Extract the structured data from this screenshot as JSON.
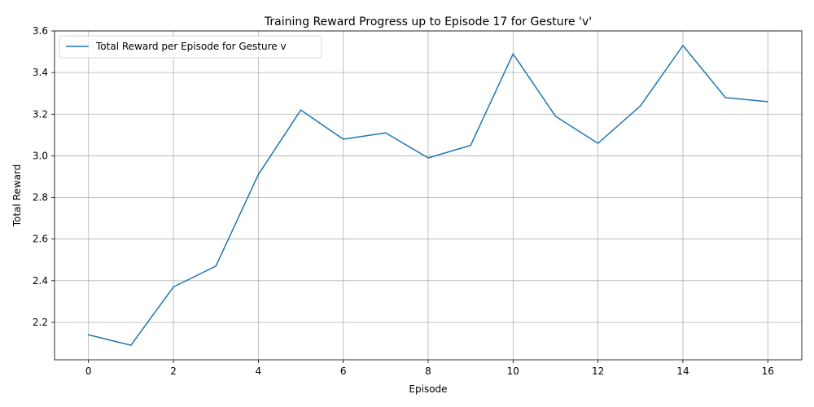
{
  "chart_data": {
    "type": "line",
    "title": "Training Reward Progress up to Episode 17 for Gesture 'v'",
    "xlabel": "Episode",
    "ylabel": "Total Reward",
    "xlim": [
      -0.8,
      16.8
    ],
    "ylim": [
      2.02,
      3.6
    ],
    "xticks": [
      0,
      2,
      4,
      6,
      8,
      10,
      12,
      14,
      16
    ],
    "yticks": [
      2.2,
      2.4,
      2.6,
      2.8,
      3.0,
      3.2,
      3.4,
      3.6
    ],
    "xtick_labels": [
      "0",
      "2",
      "4",
      "6",
      "8",
      "10",
      "12",
      "14",
      "16"
    ],
    "ytick_labels": [
      "2.2",
      "2.4",
      "2.6",
      "2.8",
      "3.0",
      "3.2",
      "3.4",
      "3.6"
    ],
    "grid": true,
    "legend_position": "upper-left",
    "series": [
      {
        "name": "Total Reward per Episode for Gesture v",
        "color": "#1f77b4",
        "x": [
          0,
          1,
          2,
          3,
          4,
          5,
          6,
          7,
          8,
          9,
          10,
          11,
          12,
          13,
          14,
          15,
          16
        ],
        "y": [
          2.14,
          2.09,
          2.37,
          2.47,
          2.91,
          3.22,
          3.08,
          3.11,
          2.99,
          3.05,
          3.49,
          3.19,
          3.06,
          3.24,
          3.53,
          3.28,
          3.26
        ]
      }
    ]
  }
}
